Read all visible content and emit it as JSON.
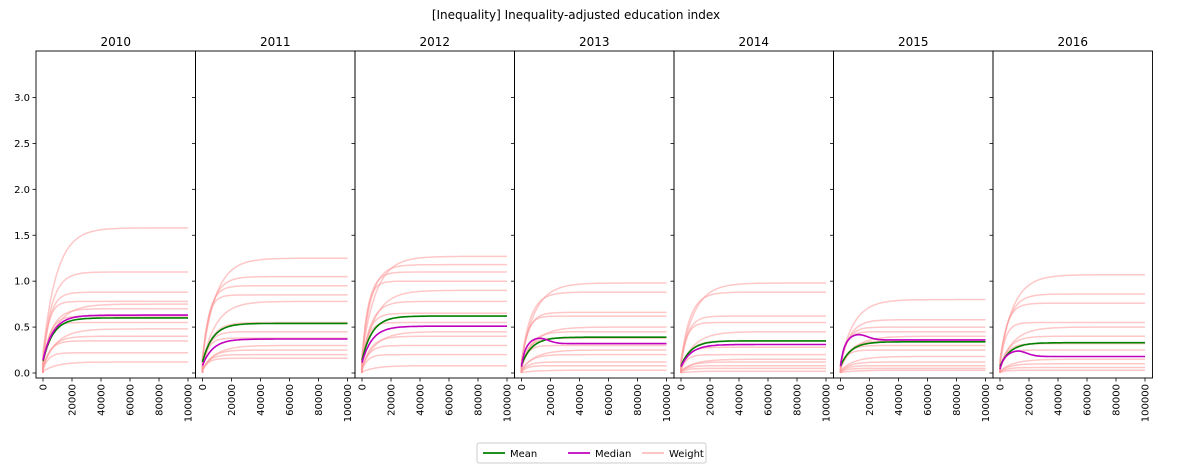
{
  "figure_title": "[Inequality] Inequality-adjusted education index",
  "colors": {
    "mean": "#008000",
    "median": "#bf00bf",
    "weight": "#ff9999",
    "axes": "#000000"
  },
  "legend": {
    "placement": "bottom-center",
    "items": [
      {
        "label": "Mean",
        "color": "#008000"
      },
      {
        "label": "Median",
        "color": "#bf00bf"
      },
      {
        "label": "Weight",
        "color": "#ffbbbb"
      }
    ]
  },
  "chart_data": {
    "type": "line",
    "xlim": [
      0,
      100000
    ],
    "ylim": [
      0,
      3.5
    ],
    "xticks": [
      0,
      20000,
      40000,
      60000,
      80000,
      100000
    ],
    "yticks": [
      0.0,
      0.5,
      1.0,
      1.5,
      2.0,
      2.5,
      3.0
    ],
    "ytick_labels": [
      "0.0",
      "0.5",
      "1.0",
      "1.5",
      "2.0",
      "2.5",
      "3.0"
    ],
    "grid": false,
    "panels": [
      {
        "title": "2010",
        "mean_final": 0.6,
        "median_final": 0.63,
        "mean_shape": "rise",
        "median_shape": "rise",
        "weights_final": [
          1.58,
          1.1,
          0.88,
          0.78,
          0.75,
          0.7,
          0.62,
          0.55,
          0.48,
          0.4,
          0.35,
          0.22,
          0.12
        ]
      },
      {
        "title": "2011",
        "mean_final": 0.54,
        "median_final": 0.37,
        "mean_shape": "rise",
        "median_shape": "rise",
        "weights_final": [
          1.25,
          1.05,
          0.95,
          0.85,
          0.78,
          0.55,
          0.45,
          0.38,
          0.3,
          0.25,
          0.2,
          0.16
        ]
      },
      {
        "title": "2012",
        "mean_final": 0.62,
        "median_final": 0.51,
        "mean_shape": "rise",
        "median_shape": "rise",
        "weights_final": [
          1.27,
          1.18,
          1.1,
          1.0,
          0.9,
          0.78,
          0.65,
          0.55,
          0.45,
          0.4,
          0.3,
          0.2,
          0.08
        ]
      },
      {
        "title": "2013",
        "mean_final": 0.39,
        "median_final": 0.32,
        "mean_shape": "rise",
        "median_shape": "peak",
        "weights_final": [
          0.98,
          0.88,
          0.66,
          0.62,
          0.5,
          0.45,
          0.38,
          0.3,
          0.25,
          0.2,
          0.12,
          0.08,
          0.03
        ]
      },
      {
        "title": "2014",
        "mean_final": 0.35,
        "median_final": 0.31,
        "mean_shape": "rise",
        "median_shape": "rise",
        "weights_final": [
          0.98,
          0.88,
          0.62,
          0.55,
          0.45,
          0.35,
          0.28,
          0.2,
          0.15,
          0.12,
          0.08,
          0.05,
          0.02
        ]
      },
      {
        "title": "2015",
        "mean_final": 0.34,
        "median_final": 0.36,
        "mean_shape": "rise",
        "median_shape": "peak",
        "weights_final": [
          0.8,
          0.58,
          0.5,
          0.45,
          0.4,
          0.35,
          0.3,
          0.25,
          0.18,
          0.12,
          0.08,
          0.05,
          0.03
        ]
      },
      {
        "title": "2016",
        "mean_final": 0.33,
        "median_final": 0.18,
        "mean_shape": "rise",
        "median_shape": "peak",
        "weights_final": [
          1.07,
          0.86,
          0.76,
          0.55,
          0.5,
          0.4,
          0.32,
          0.25,
          0.15,
          0.1,
          0.06,
          0.03
        ]
      }
    ]
  }
}
